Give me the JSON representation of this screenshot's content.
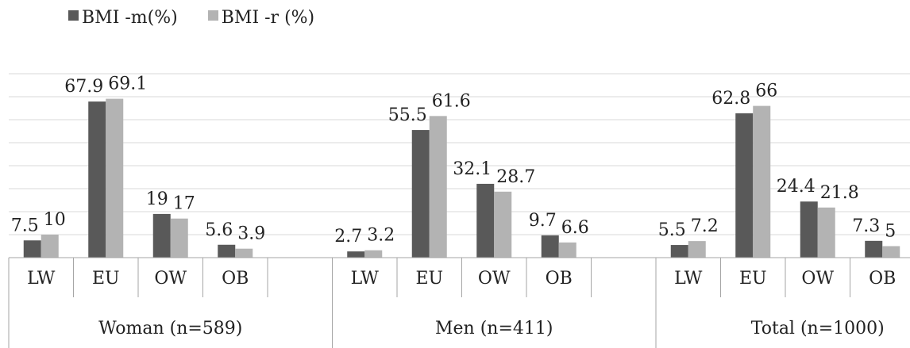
{
  "chart_data": {
    "type": "bar",
    "title": "",
    "xlabel": "",
    "ylabel": "",
    "ylim": [
      0,
      80
    ],
    "grid": true,
    "legend_position": "top-left",
    "groups": [
      {
        "label": "Woman  (n=589)",
        "categories": [
          "LW",
          "EU",
          "OW",
          "OB"
        ]
      },
      {
        "label": "Men (n=411)",
        "categories": [
          "LW",
          "EU",
          "OW",
          "OB"
        ]
      },
      {
        "label": "Total (n=1000)",
        "categories": [
          "LW",
          "EU",
          "OW",
          "OB"
        ]
      }
    ],
    "series": [
      {
        "name": "BMI -m(%)",
        "color": "#595959",
        "values": [
          [
            7.5,
            67.9,
            19,
            5.6
          ],
          [
            2.7,
            55.5,
            32.1,
            9.7
          ],
          [
            5.5,
            62.8,
            24.4,
            7.3
          ]
        ]
      },
      {
        "name": "BMI -r (%)",
        "color": "#b3b3b3",
        "values": [
          [
            10,
            69.1,
            17,
            3.9
          ],
          [
            3.2,
            61.6,
            28.7,
            6.6
          ],
          [
            7.2,
            66,
            21.8,
            5
          ]
        ]
      }
    ]
  }
}
